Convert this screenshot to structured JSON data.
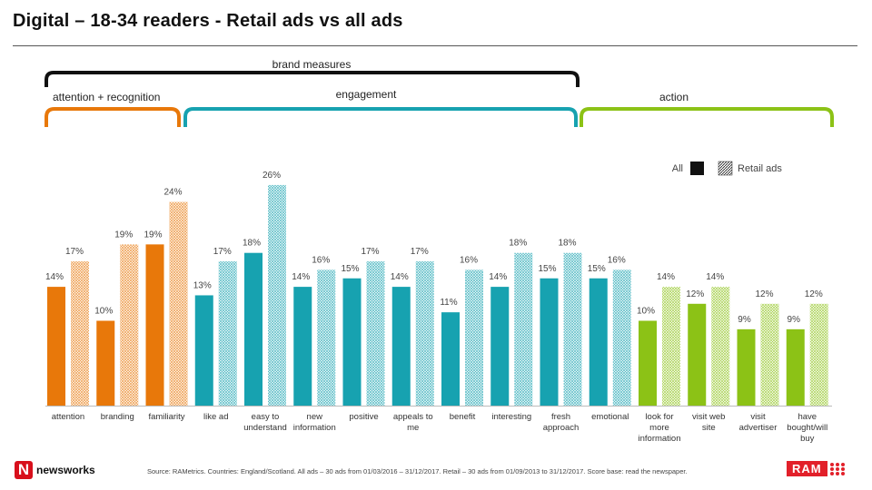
{
  "title": "Digital – 18-34 readers - Retail ads vs all ads",
  "brand_measures_label": "brand measures",
  "groups": [
    {
      "label": "attention + recognition",
      "color": "#e8780a"
    },
    {
      "label": "engagement",
      "color": "#17a2b0"
    },
    {
      "label": "action",
      "color": "#8cc216"
    }
  ],
  "legend": {
    "all": "All",
    "retail": "Retail ads"
  },
  "colors": {
    "attention": "#e8780a",
    "engagement": "#17a2b0",
    "action": "#8cc216",
    "brand_bracket": "#111111"
  },
  "chart_data": {
    "type": "bar",
    "categories": [
      "attention",
      "branding",
      "familiarity",
      "like ad",
      "easy to understand",
      "new information",
      "positive",
      "appeals to me",
      "benefit",
      "interesting",
      "fresh approach",
      "emotional",
      "look for more information",
      "visit web site",
      "visit advertiser",
      "have bought/will buy"
    ],
    "category_lines": [
      [
        "attention"
      ],
      [
        "branding"
      ],
      [
        "familiarity"
      ],
      [
        "like ad"
      ],
      [
        "easy to",
        "understand"
      ],
      [
        "new",
        "information"
      ],
      [
        "positive"
      ],
      [
        "appeals to",
        "me"
      ],
      [
        "benefit"
      ],
      [
        "interesting"
      ],
      [
        "fresh",
        "approach"
      ],
      [
        "emotional"
      ],
      [
        "look for",
        "more",
        "information"
      ],
      [
        "visit web",
        "site"
      ],
      [
        "visit",
        "advertiser"
      ],
      [
        "have",
        "bought/will",
        "buy"
      ]
    ],
    "category_group": [
      0,
      0,
      0,
      1,
      1,
      1,
      1,
      1,
      1,
      1,
      1,
      1,
      2,
      2,
      2,
      2
    ],
    "series": [
      {
        "name": "All",
        "values": [
          14,
          10,
          19,
          13,
          18,
          14,
          15,
          14,
          11,
          14,
          15,
          15,
          10,
          12,
          9,
          9
        ]
      },
      {
        "name": "Retail ads",
        "values": [
          17,
          19,
          24,
          17,
          26,
          16,
          17,
          17,
          16,
          18,
          18,
          16,
          14,
          14,
          12,
          12
        ]
      }
    ],
    "value_labels": [
      [
        "14%",
        "10%",
        "19%",
        "13%",
        "18%",
        "14%",
        "15%",
        "14%",
        "11%",
        "14%",
        "15%",
        "15%",
        "10%",
        "12%",
        "9%",
        "9%"
      ],
      [
        "17%",
        "19%",
        "24%",
        "17%",
        "26%",
        "16%",
        "17%",
        "17%",
        "16%",
        "18%",
        "18%",
        "16%",
        "14%",
        "14%",
        "12%",
        "12%"
      ]
    ],
    "ylim": [
      0,
      30
    ],
    "legend_position": "top-right"
  },
  "footer": {
    "logo_letter": "N",
    "logo_text": "newsworks",
    "source": "Source: RAMetrics. Countries: England/Scotland. All ads – 30 ads from 01/03/2016 – 31/12/2017. Retail – 30 ads from 01/09/2013 to 31/12/2017. Score base: read the newspaper.",
    "ram_text": "RAM"
  }
}
